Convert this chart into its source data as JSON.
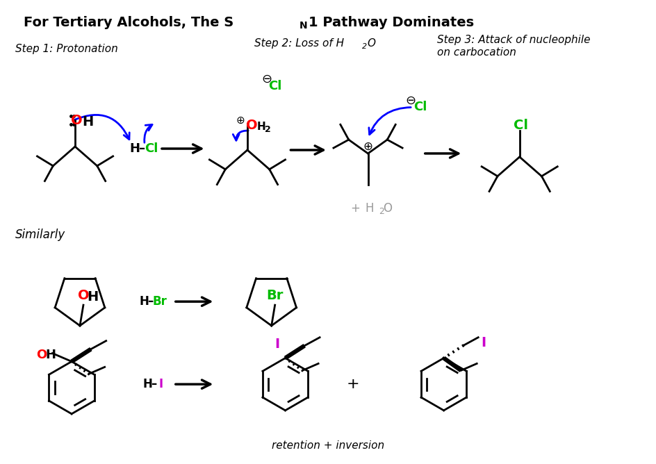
{
  "bg_color": "#ffffff",
  "cl_color": "#00bb00",
  "br_color": "#00bb00",
  "i_color": "#cc00cc",
  "oh_color": "#ff0000",
  "blue_color": "#0000ff",
  "black_color": "#000000",
  "gray_color": "#999999",
  "title_text": "For Tertiary Alcohols, The S",
  "title_sub": "N",
  "title_end": "1 Pathway Dominates",
  "step1_text": "Step 1: Protonation",
  "step2_text": "Step 2: Loss of H",
  "step2_sub": "2",
  "step2_end": "O",
  "step3_line1": "Step 3: Attack of nucleophile",
  "step3_line2": "on carbocation",
  "similarly_text": "Similarly",
  "ret_inv_text": "retention + inversion",
  "water_text": "+ H",
  "water_sub": "2",
  "water_end": "O"
}
